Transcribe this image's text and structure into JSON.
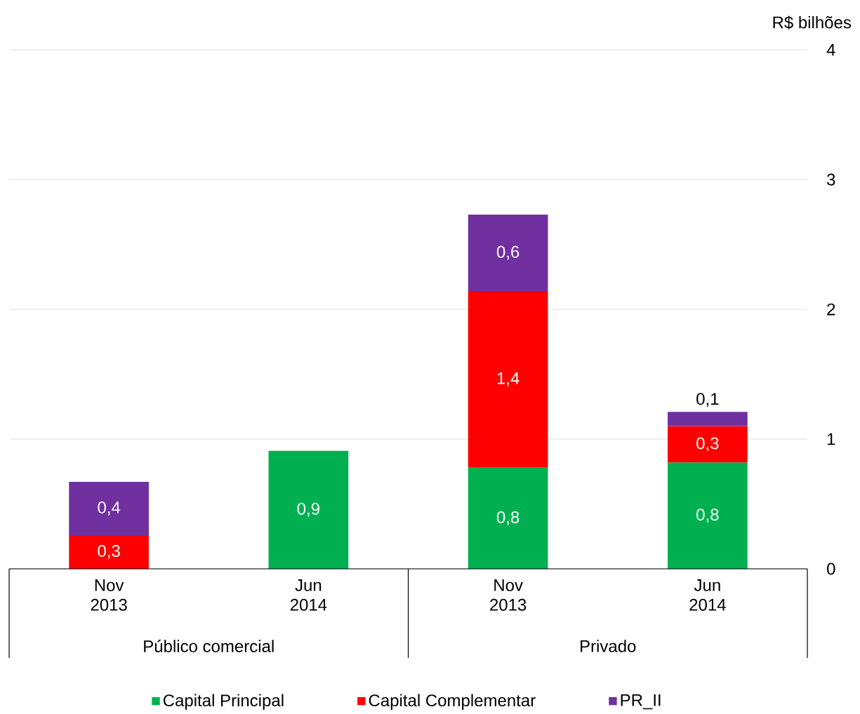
{
  "chart_data": {
    "type": "bar",
    "stacked": true,
    "ylabel": "R$ bilhões",
    "categories": [
      "Nov 2013",
      "Jun 2014",
      "Nov 2013",
      "Jun 2014"
    ],
    "series": [
      {
        "name": "Capital Principal",
        "color": "#00b050",
        "values": [
          null,
          0.91,
          0.78,
          0.82
        ],
        "value_labels": [
          null,
          "0,9",
          "0,8",
          "0,8"
        ]
      },
      {
        "name": "Capital Complementar",
        "color": "#ff0000",
        "values": [
          0.26,
          null,
          1.36,
          0.28
        ],
        "value_labels": [
          "0,3",
          null,
          "1,4",
          "0,3"
        ]
      },
      {
        "name": "PR_II",
        "color": "#7030a0",
        "values": [
          0.41,
          null,
          0.59,
          0.11
        ],
        "value_labels": [
          "0,4",
          null,
          "0,6",
          "0,1"
        ]
      }
    ],
    "annotations": [
      "Público comercial",
      "Privado"
    ],
    "ylim": [
      0,
      4
    ],
    "yticks": [
      0,
      1,
      2,
      3,
      4
    ],
    "grid": "y",
    "legend": "bottom"
  }
}
